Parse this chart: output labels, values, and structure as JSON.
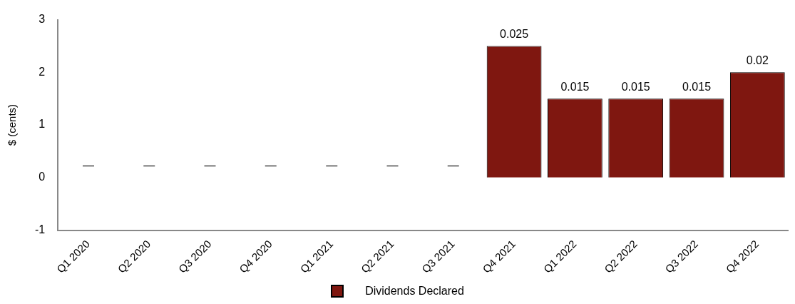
{
  "chart_data": {
    "type": "bar",
    "ylabel": "$ (cents)",
    "categories": [
      "Q1 2020",
      "Q2 2020",
      "Q3 2020",
      "Q4 2020",
      "Q1 2021",
      "Q2 2021",
      "Q3 2021",
      "Q4 2021",
      "Q1 2022",
      "Q2 2022",
      "Q3 2022",
      "Q4 2022"
    ],
    "series": [
      {
        "name": "Dividends Declared",
        "color": "#7f1710",
        "values": [
          0,
          0,
          0,
          0,
          0,
          0,
          0,
          2.5,
          1.5,
          1.5,
          1.5,
          2.0
        ]
      }
    ],
    "annotations": [
      {
        "text": "—",
        "x": "Q1 2020",
        "y": 0
      },
      {
        "text": "—",
        "x": "Q2 2020",
        "y": 0
      },
      {
        "text": "—",
        "x": "Q3 2020",
        "y": 0
      },
      {
        "text": "—",
        "x": "Q4 2020",
        "y": 0
      },
      {
        "text": "—",
        "x": "Q1 2021",
        "y": 0
      },
      {
        "text": "—",
        "x": "Q2 2021",
        "y": 0
      },
      {
        "text": "—",
        "x": "Q3 2021",
        "y": 0
      },
      {
        "text": "0.025",
        "x": "Q4 2021",
        "y": 2.5
      },
      {
        "text": "0.015",
        "x": "Q1 2022",
        "y": 1.5
      },
      {
        "text": "0.015",
        "x": "Q2 2022",
        "y": 1.5
      },
      {
        "text": "0.015",
        "x": "Q3 2022",
        "y": 1.5
      },
      {
        "text": "0.02",
        "x": "Q4 2022",
        "y": 2.0
      }
    ],
    "ylim": [
      -1,
      3
    ],
    "yticks": [
      -1,
      0,
      1,
      2,
      3
    ],
    "grid": false,
    "legend": "bottom"
  }
}
